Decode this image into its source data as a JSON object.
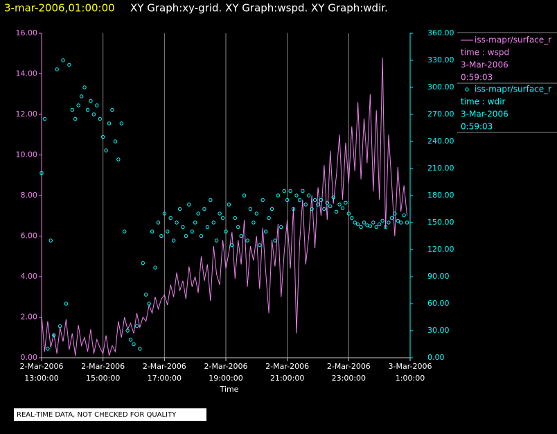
{
  "chart_data": {
    "type": "xy",
    "title": "3-mar-2006,01:00:00",
    "subtitle": "XY Graph:xy-grid.  XY Graph:wspd.  XY Graph:wdir.",
    "x_label": "Time",
    "footnote": "REAL-TIME DATA, NOT CHECKED FOR QUALITY",
    "xlim": [
      "2006-03-02T13:00",
      "2006-03-03T01:00"
    ],
    "xticks": [
      {
        "value": "2006-03-02T13:00",
        "label": [
          "2-Mar-2006",
          "13:00:00"
        ]
      },
      {
        "value": "2006-03-02T15:00",
        "label": [
          "2-Mar-2006",
          "15:00:00"
        ]
      },
      {
        "value": "2006-03-02T17:00",
        "label": [
          "2-Mar-2006",
          "17:00:00"
        ]
      },
      {
        "value": "2006-03-02T19:00",
        "label": [
          "2-Mar-2006",
          "19:00:00"
        ]
      },
      {
        "value": "2006-03-02T21:00",
        "label": [
          "2-Mar-2006",
          "21:00:00"
        ]
      },
      {
        "value": "2006-03-02T23:00",
        "label": [
          "2-Mar-2006",
          "23:00:00"
        ]
      },
      {
        "value": "2006-03-03T01:00",
        "label": [
          "3-Mar-2006",
          "1:00:00"
        ]
      }
    ],
    "ylim": [
      0,
      16
    ],
    "yticks": [
      {
        "value": 0,
        "label": "0.00"
      },
      {
        "value": 2,
        "label": "2.00"
      },
      {
        "value": 4,
        "label": "4.00"
      },
      {
        "value": 6,
        "label": "6.00"
      },
      {
        "value": 8,
        "label": "8.00"
      },
      {
        "value": 10,
        "label": "10.00"
      },
      {
        "value": 12,
        "label": "12.00"
      },
      {
        "value": 14,
        "label": "14.00"
      },
      {
        "value": 16,
        "label": "16.00"
      }
    ],
    "y2lim": [
      0,
      360
    ],
    "y2ticks": [
      {
        "value": 0,
        "label": "0.00"
      },
      {
        "value": 30,
        "label": "30.00"
      },
      {
        "value": 60,
        "label": "60.00"
      },
      {
        "value": 90,
        "label": "90.00"
      },
      {
        "value": 120,
        "label": "120.00"
      },
      {
        "value": 150,
        "label": "150.00"
      },
      {
        "value": 180,
        "label": "180.00"
      },
      {
        "value": 210,
        "label": "210.00"
      },
      {
        "value": 240,
        "label": "240.00"
      },
      {
        "value": 270,
        "label": "270.00"
      },
      {
        "value": 300,
        "label": "300.00"
      },
      {
        "value": 330,
        "label": "330.00"
      },
      {
        "value": 360,
        "label": "360.00"
      }
    ],
    "grid": true,
    "x": [
      "2006-03-02T13:00",
      "2006-03-02T13:06",
      "2006-03-02T13:12",
      "2006-03-02T13:18",
      "2006-03-02T13:24",
      "2006-03-02T13:30",
      "2006-03-02T13:36",
      "2006-03-02T13:42",
      "2006-03-02T13:48",
      "2006-03-02T13:54",
      "2006-03-02T14:00",
      "2006-03-02T14:06",
      "2006-03-02T14:12",
      "2006-03-02T14:18",
      "2006-03-02T14:24",
      "2006-03-02T14:30",
      "2006-03-02T14:36",
      "2006-03-02T14:42",
      "2006-03-02T14:48",
      "2006-03-02T14:54",
      "2006-03-02T15:00",
      "2006-03-02T15:06",
      "2006-03-02T15:12",
      "2006-03-02T15:18",
      "2006-03-02T15:24",
      "2006-03-02T15:30",
      "2006-03-02T15:36",
      "2006-03-02T15:42",
      "2006-03-02T15:48",
      "2006-03-02T15:54",
      "2006-03-02T16:00",
      "2006-03-02T16:06",
      "2006-03-02T16:12",
      "2006-03-02T16:18",
      "2006-03-02T16:24",
      "2006-03-02T16:30",
      "2006-03-02T16:36",
      "2006-03-02T16:42",
      "2006-03-02T16:48",
      "2006-03-02T16:54",
      "2006-03-02T17:00",
      "2006-03-02T17:06",
      "2006-03-02T17:12",
      "2006-03-02T17:18",
      "2006-03-02T17:24",
      "2006-03-02T17:30",
      "2006-03-02T17:36",
      "2006-03-02T17:42",
      "2006-03-02T17:48",
      "2006-03-02T17:54",
      "2006-03-02T18:00",
      "2006-03-02T18:06",
      "2006-03-02T18:12",
      "2006-03-02T18:18",
      "2006-03-02T18:24",
      "2006-03-02T18:30",
      "2006-03-02T18:36",
      "2006-03-02T18:42",
      "2006-03-02T18:48",
      "2006-03-02T18:54",
      "2006-03-02T19:00",
      "2006-03-02T19:06",
      "2006-03-02T19:12",
      "2006-03-02T19:18",
      "2006-03-02T19:24",
      "2006-03-02T19:30",
      "2006-03-02T19:36",
      "2006-03-02T19:42",
      "2006-03-02T19:48",
      "2006-03-02T19:54",
      "2006-03-02T20:00",
      "2006-03-02T20:06",
      "2006-03-02T20:12",
      "2006-03-02T20:18",
      "2006-03-02T20:24",
      "2006-03-02T20:30",
      "2006-03-02T20:36",
      "2006-03-02T20:42",
      "2006-03-02T20:48",
      "2006-03-02T20:54",
      "2006-03-02T21:00",
      "2006-03-02T21:06",
      "2006-03-02T21:12",
      "2006-03-02T21:18",
      "2006-03-02T21:24",
      "2006-03-02T21:30",
      "2006-03-02T21:36",
      "2006-03-02T21:42",
      "2006-03-02T21:48",
      "2006-03-02T21:54",
      "2006-03-02T22:00",
      "2006-03-02T22:06",
      "2006-03-02T22:12",
      "2006-03-02T22:18",
      "2006-03-02T22:24",
      "2006-03-02T22:30",
      "2006-03-02T22:36",
      "2006-03-02T22:42",
      "2006-03-02T22:48",
      "2006-03-02T22:54",
      "2006-03-02T23:00",
      "2006-03-02T23:06",
      "2006-03-02T23:12",
      "2006-03-02T23:18",
      "2006-03-02T23:24",
      "2006-03-02T23:30",
      "2006-03-02T23:36",
      "2006-03-02T23:42",
      "2006-03-02T23:48",
      "2006-03-02T23:54",
      "2006-03-03T00:00",
      "2006-03-03T00:06",
      "2006-03-03T00:12",
      "2006-03-03T00:18",
      "2006-03-03T00:24",
      "2006-03-03T00:30",
      "2006-03-03T00:36",
      "2006-03-03T00:42",
      "2006-03-03T00:48",
      "2006-03-03T00:54"
    ],
    "series": [
      {
        "name": "iss-mapr/surface_r",
        "legend_lines": [
          "time : wspd",
          "3-Mar-2006",
          "0:59:03"
        ],
        "color": "#ee82ee",
        "style": "line",
        "axis": "y",
        "values": [
          2.1,
          0.3,
          1.8,
          0.5,
          1.2,
          0.2,
          1.5,
          0.8,
          1.9,
          0.4,
          1.2,
          0.1,
          1.6,
          0.6,
          1.0,
          0.3,
          1.4,
          0.2,
          0.9,
          0.5,
          0.2,
          1.1,
          0.1,
          0.6,
          0.3,
          1.8,
          1.0,
          2.0,
          1.4,
          1.7,
          1.2,
          2.2,
          1.5,
          2.0,
          1.8,
          2.6,
          2.2,
          3.0,
          2.4,
          2.9,
          3.1,
          2.6,
          3.6,
          3.0,
          4.2,
          3.3,
          3.8,
          2.9,
          4.5,
          3.5,
          4.0,
          3.2,
          5.0,
          3.8,
          4.6,
          2.8,
          5.5,
          4.1,
          3.6,
          5.8,
          4.4,
          5.2,
          6.2,
          3.9,
          5.8,
          4.6,
          6.8,
          3.5,
          5.5,
          4.8,
          6.0,
          3.4,
          6.4,
          4.2,
          2.2,
          5.8,
          4.5,
          6.6,
          3.0,
          5.2,
          6.8,
          4.4,
          7.4,
          1.2,
          5.6,
          7.8,
          4.6,
          6.0,
          8.0,
          5.4,
          8.4,
          7.0,
          9.5,
          6.8,
          10.2,
          7.6,
          9.0,
          11.0,
          7.8,
          10.6,
          8.6,
          11.4,
          9.2,
          12.6,
          8.8,
          11.8,
          9.6,
          13.0,
          8.2,
          12.2,
          7.8,
          14.8,
          6.4,
          11.0,
          8.6,
          6.0,
          9.4,
          7.2,
          8.5,
          7.0
        ]
      },
      {
        "name": "iss-mapr/surface_r",
        "legend_lines": [
          "time : wdir",
          "3-Mar-2006",
          "0:59:03"
        ],
        "color": "#00ffff",
        "style": "scatter",
        "axis": "y2",
        "values": [
          205,
          265,
          10,
          130,
          25,
          320,
          35,
          330,
          60,
          325,
          275,
          265,
          280,
          290,
          300,
          275,
          285,
          270,
          280,
          265,
          245,
          230,
          260,
          275,
          240,
          220,
          260,
          140,
          30,
          20,
          15,
          35,
          10,
          105,
          70,
          60,
          140,
          100,
          150,
          135,
          160,
          140,
          155,
          130,
          150,
          165,
          145,
          135,
          170,
          140,
          150,
          160,
          135,
          165,
          145,
          175,
          150,
          130,
          160,
          155,
          140,
          170,
          125,
          155,
          145,
          135,
          180,
          130,
          165,
          150,
          160,
          125,
          175,
          140,
          155,
          165,
          130,
          180,
          145,
          185,
          175,
          185,
          165,
          180,
          175,
          185,
          170,
          180,
          165,
          175,
          170,
          175,
          165,
          172,
          168,
          178,
          162,
          170,
          166,
          172,
          160,
          155,
          150,
          148,
          145,
          150,
          147,
          146,
          150,
          145,
          148,
          152,
          145,
          150,
          155,
          160,
          152,
          150,
          158,
          150
        ]
      }
    ]
  }
}
